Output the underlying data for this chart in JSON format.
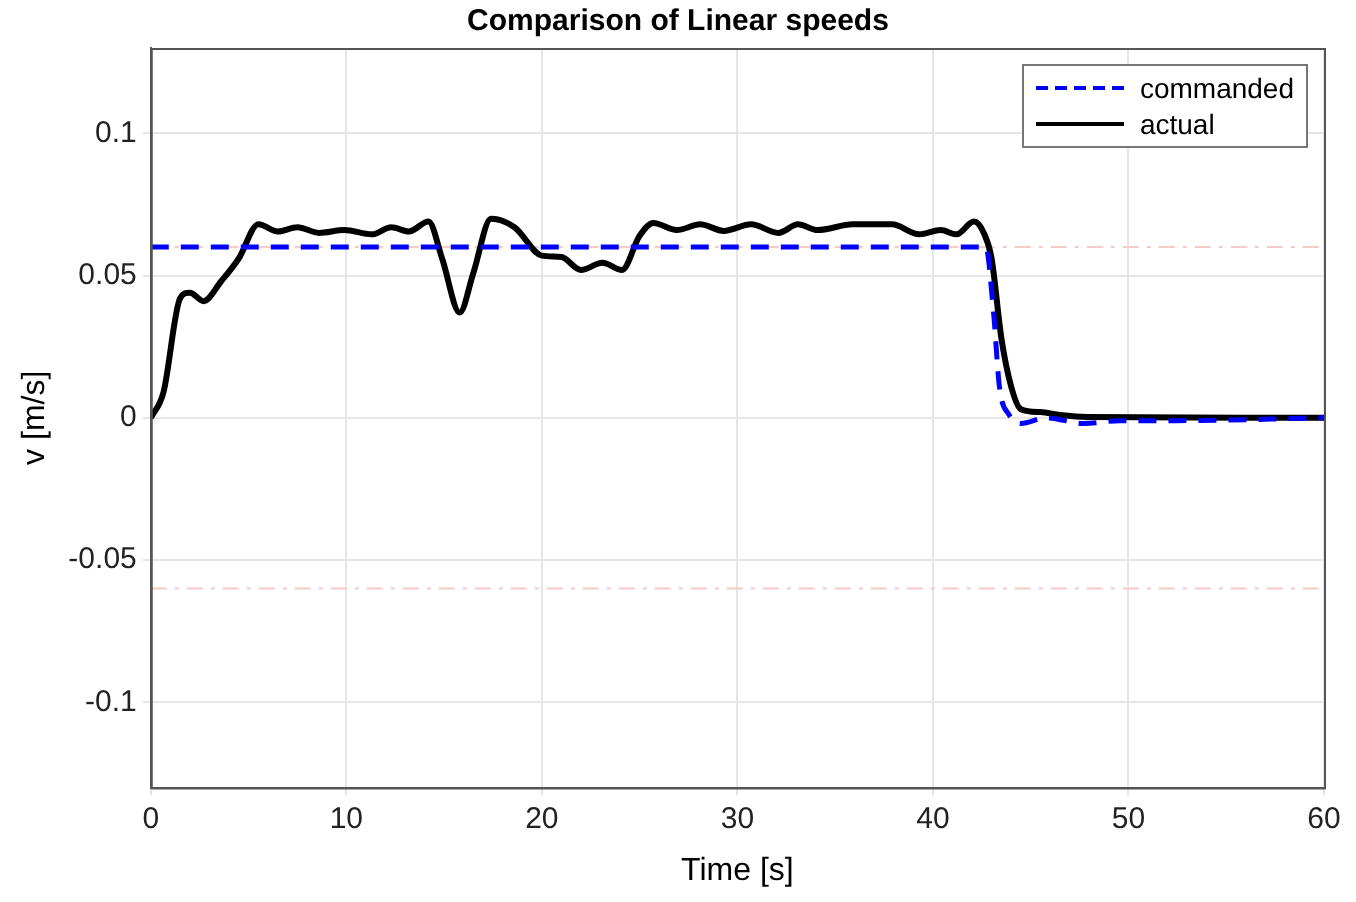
{
  "chart_data": {
    "type": "line",
    "title": "Comparison of Linear speeds",
    "xlabel": "Time [s]",
    "ylabel": "v [m/s]",
    "xlim": [
      0,
      60
    ],
    "xticks": [
      0,
      10,
      20,
      30,
      40,
      50,
      60
    ],
    "ylim": [
      -0.13,
      0.13
    ],
    "yticks": [
      -0.1,
      -0.05,
      0,
      0.05,
      0.1
    ],
    "grid": true,
    "legend": "top right",
    "marker": "none",
    "ref_lines": [
      {
        "axis": "y",
        "value": 0.06,
        "color": "#f4cccc",
        "line_style": "dashdot"
      },
      {
        "axis": "y",
        "value": -0.06,
        "color": "#f8c8c8",
        "line_style": "dashdot"
      }
    ],
    "series": [
      {
        "name": "commanded",
        "color": "#0000ff",
        "line_style": "dashed",
        "x": [
          0,
          42.4,
          42.7,
          43.1,
          43.4,
          43.9,
          44.5,
          45.8,
          47.7,
          49.6,
          52.5,
          60
        ],
        "values": [
          0.06,
          0.06,
          0.06,
          0.037,
          0.011,
          0.001,
          -0.002,
          0,
          -0.002,
          -0.001,
          -0.001,
          0
        ]
      },
      {
        "name": "actual",
        "color": "#000000",
        "line_style": "solid",
        "x": [
          0,
          0.65,
          1.5,
          2.0,
          2.7,
          3.6,
          4.5,
          5.5,
          6.5,
          7.5,
          8.6,
          9.9,
          11.3,
          12.3,
          13.2,
          14.2,
          14.9,
          15.8,
          16.5,
          17.4,
          18.6,
          20.0,
          21.0,
          22.0,
          23.1,
          24.1,
          25.0,
          25.7,
          26.9,
          28.1,
          29.3,
          30.7,
          32.1,
          33.1,
          34.1,
          35.9,
          37.9,
          39.3,
          40.4,
          41.2,
          42.1,
          42.6,
          43.0,
          43.5,
          44.0,
          44.5,
          45.5,
          46.5,
          47.9,
          60
        ],
        "values": [
          0,
          0.009,
          0.042,
          0.044,
          0.041,
          0.048,
          0.056,
          0.068,
          0.0655,
          0.067,
          0.065,
          0.066,
          0.0645,
          0.067,
          0.0655,
          0.069,
          0.056,
          0.037,
          0.051,
          0.07,
          0.067,
          0.057,
          0.0565,
          0.052,
          0.0545,
          0.052,
          0.064,
          0.0685,
          0.066,
          0.068,
          0.0657,
          0.068,
          0.065,
          0.068,
          0.066,
          0.068,
          0.068,
          0.0645,
          0.066,
          0.0645,
          0.069,
          0.065,
          0.056,
          0.028,
          0.011,
          0.003,
          0.002,
          0.001,
          0.0003,
          0
        ]
      }
    ]
  }
}
